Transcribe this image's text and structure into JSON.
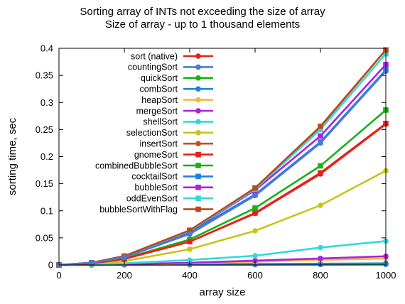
{
  "chart_data": {
    "type": "line",
    "title": "Sorting array of INTs not exceeding the size of array",
    "subtitle": "Size of array - up to 1 thousand elements",
    "xlabel": "array size",
    "ylabel": "sorting time, sec",
    "xlim": [
      0,
      1000
    ],
    "ylim": [
      0,
      0.4
    ],
    "xticks": [
      0,
      200,
      400,
      600,
      800,
      1000
    ],
    "yticks": [
      0,
      0.05,
      0.1,
      0.15,
      0.2,
      0.25,
      0.3,
      0.35,
      0.4
    ],
    "legend_position": "top-left",
    "grid": false,
    "x": [
      0,
      100,
      200,
      400,
      600,
      800,
      1000
    ],
    "series": [
      {
        "name": "sort (native)",
        "color": "#e8201a",
        "marker": "circle",
        "values": [
          0,
          0,
          0.0002,
          0.0005,
          0.0008,
          0.001,
          0.0013
        ]
      },
      {
        "name": "countingSort",
        "color": "#4a78d8",
        "marker": "circle",
        "values": [
          0,
          0,
          0.0002,
          0.0004,
          0.0006,
          0.0008,
          0.001
        ]
      },
      {
        "name": "quickSort",
        "color": "#19b019",
        "marker": "circle",
        "values": [
          0,
          0,
          0.0005,
          0.001,
          0.0015,
          0.002,
          0.0025
        ]
      },
      {
        "name": "combSort",
        "color": "#1a84e0",
        "marker": "circle",
        "values": [
          0,
          0,
          0.0006,
          0.0012,
          0.0018,
          0.0024,
          0.003
        ]
      },
      {
        "name": "heapSort",
        "color": "#f5b93a",
        "marker": "circle",
        "values": [
          0,
          0.0004,
          0.0012,
          0.003,
          0.006,
          0.009,
          0.012
        ]
      },
      {
        "name": "mergeSort",
        "color": "#a822e0",
        "marker": "circle",
        "values": [
          0,
          0.0005,
          0.0015,
          0.004,
          0.008,
          0.012,
          0.016
        ]
      },
      {
        "name": "shellSort",
        "color": "#33d9d9",
        "marker": "circle",
        "values": [
          0,
          0.0008,
          0.003,
          0.009,
          0.017,
          0.032,
          0.044
        ]
      },
      {
        "name": "selectionSort",
        "color": "#c8c41a",
        "marker": "circle",
        "values": [
          0,
          0.002,
          0.007,
          0.029,
          0.063,
          0.11,
          0.174
        ]
      },
      {
        "name": "insertSort",
        "color": "#c05020",
        "marker": "circle",
        "values": [
          0,
          0.004,
          0.016,
          0.063,
          0.142,
          0.255,
          0.397
        ]
      },
      {
        "name": "gnomeSort",
        "color": "#e8201a",
        "marker": "square",
        "values": [
          0,
          0.003,
          0.011,
          0.043,
          0.096,
          0.17,
          0.261
        ]
      },
      {
        "name": "combinedBubbleSort",
        "color": "#19b019",
        "marker": "square",
        "values": [
          0,
          0.003,
          0.012,
          0.047,
          0.105,
          0.183,
          0.286
        ]
      },
      {
        "name": "cocktailSort",
        "color": "#1a84e0",
        "marker": "square",
        "values": [
          0,
          0.004,
          0.015,
          0.06,
          0.13,
          0.227,
          0.36
        ]
      },
      {
        "name": "bubbleSort",
        "color": "#a822e0",
        "marker": "square",
        "values": [
          0,
          0.004,
          0.016,
          0.062,
          0.138,
          0.238,
          0.37
        ]
      },
      {
        "name": "oddEvenSort",
        "color": "#33d9d9",
        "marker": "square",
        "values": [
          0,
          0.004,
          0.016,
          0.063,
          0.14,
          0.25,
          0.39
        ]
      },
      {
        "name": "bubbleSortWithFlag",
        "color": "#b84a1a",
        "marker": "square",
        "values": [
          0,
          0.004,
          0.0165,
          0.064,
          0.142,
          0.256,
          0.397
        ]
      },
      {
        "name": "",
        "color": "#e8201a",
        "marker": "circle",
        "values": [
          0,
          0.003,
          0.011,
          0.043,
          0.095,
          0.168,
          0.26
        ]
      },
      {
        "name": "",
        "color": "#4a78d8",
        "marker": "circle",
        "values": [
          0,
          0.004,
          0.014,
          0.057,
          0.128,
          0.225,
          0.358
        ]
      }
    ]
  }
}
